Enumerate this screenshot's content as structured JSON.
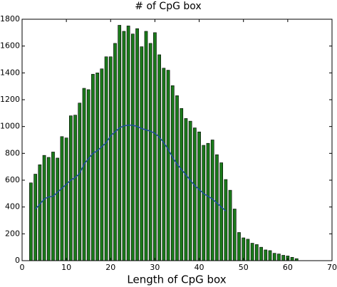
{
  "chart_data": {
    "type": "bar",
    "title": "# of CpG box",
    "x_label": "Length of CpG box",
    "x": [
      2,
      3,
      4,
      5,
      6,
      7,
      8,
      9,
      10,
      11,
      12,
      13,
      14,
      15,
      16,
      17,
      18,
      19,
      20,
      21,
      22,
      23,
      24,
      25,
      26,
      27,
      28,
      29,
      30,
      31,
      32,
      33,
      34,
      35,
      36,
      37,
      38,
      39,
      40,
      41,
      42,
      43,
      44,
      45,
      46,
      47,
      48,
      49,
      50,
      51,
      52,
      53,
      54,
      55,
      56,
      57,
      58,
      59,
      60,
      61,
      62
    ],
    "series": [
      {
        "type": "bar",
        "color": "#1a7a1a",
        "values": [
          580,
          645,
          715,
          785,
          770,
          810,
          765,
          925,
          915,
          1080,
          1085,
          1175,
          1285,
          1275,
          1390,
          1400,
          1430,
          1520,
          1520,
          1620,
          1755,
          1710,
          1750,
          1690,
          1730,
          1595,
          1710,
          1620,
          1700,
          1535,
          1435,
          1420,
          1305,
          1230,
          1135,
          1060,
          1040,
          990,
          960,
          860,
          875,
          900,
          790,
          730,
          605,
          525,
          385,
          210,
          170,
          160,
          130,
          120,
          100,
          80,
          75,
          55,
          50,
          40,
          35,
          25,
          15
        ]
      },
      {
        "type": "line",
        "color": "#1f4e9c",
        "x": [
          3,
          4,
          5,
          6,
          7,
          8,
          9,
          10,
          11,
          12,
          13,
          14,
          15,
          16,
          17,
          18,
          19,
          20,
          21,
          22,
          23,
          24,
          25,
          26,
          27,
          28,
          29,
          30,
          31,
          32,
          33,
          34,
          35,
          36,
          37,
          38,
          39,
          40,
          41,
          42,
          43,
          44,
          45,
          46
        ],
        "values": [
          385,
          420,
          460,
          475,
          480,
          510,
          540,
          570,
          600,
          620,
          650,
          720,
          760,
          800,
          820,
          850,
          880,
          930,
          960,
          990,
          1005,
          1010,
          1010,
          1000,
          985,
          975,
          965,
          950,
          920,
          880,
          830,
          770,
          720,
          680,
          640,
          600,
          560,
          530,
          500,
          480,
          460,
          430,
          400,
          370
        ]
      }
    ],
    "xlim": [
      0,
      70
    ],
    "xticks": [
      0,
      10,
      20,
      30,
      40,
      50,
      60,
      70
    ],
    "ylim": [
      0,
      1800
    ],
    "yticks": [
      0,
      200,
      400,
      600,
      800,
      1000,
      1200,
      1400,
      1600,
      1800
    ]
  }
}
